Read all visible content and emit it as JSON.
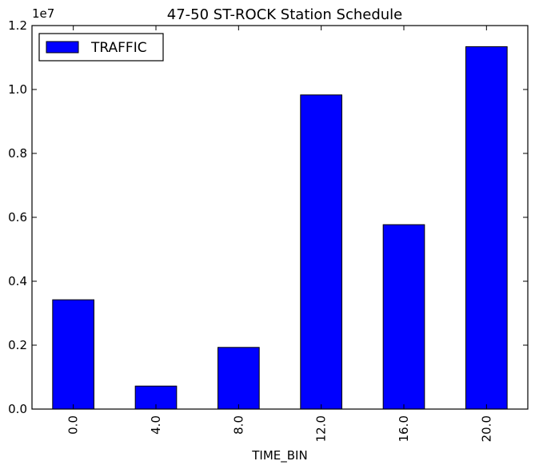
{
  "chart_data": {
    "type": "bar",
    "title": "47-50 ST-ROCK Station Schedule",
    "xlabel": "TIME_BIN",
    "ylabel": "",
    "categories": [
      "0.0",
      "4.0",
      "8.0",
      "12.0",
      "16.0",
      "20.0"
    ],
    "series": [
      {
        "name": "TRAFFIC",
        "values": [
          3420000,
          720000,
          1930000,
          9830000,
          5770000,
          11340000
        ],
        "color": "#0000ff"
      }
    ],
    "ylim": [
      0,
      12000000
    ],
    "yticks": [
      0,
      2000000,
      4000000,
      6000000,
      8000000,
      10000000,
      12000000
    ],
    "ytick_labels": [
      "0.0",
      "0.2",
      "0.4",
      "0.6",
      "0.8",
      "1.0",
      "1.2"
    ],
    "y_offset_label": "1e7",
    "grid": false,
    "legend_position": "top-left"
  }
}
